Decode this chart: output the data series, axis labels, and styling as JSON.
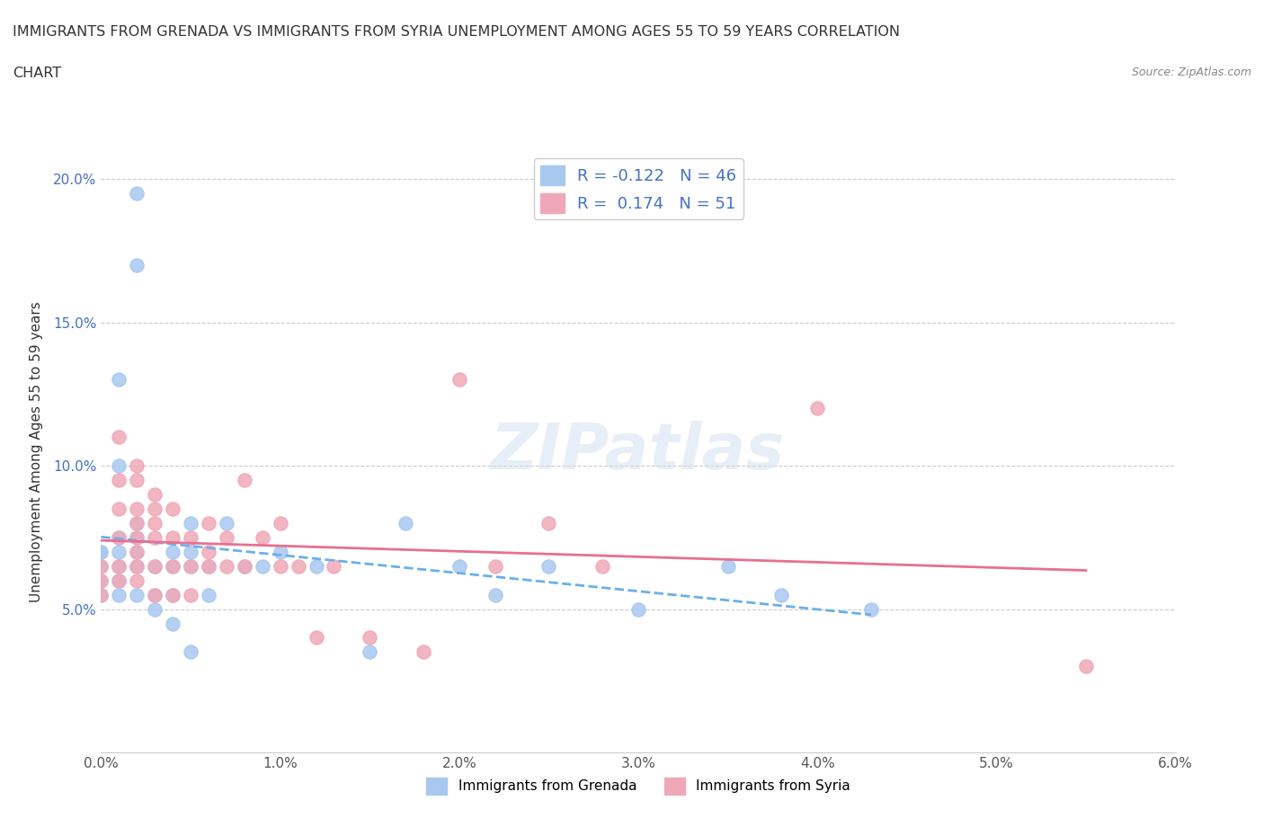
{
  "title_line1": "IMMIGRANTS FROM GRENADA VS IMMIGRANTS FROM SYRIA UNEMPLOYMENT AMONG AGES 55 TO 59 YEARS CORRELATION",
  "title_line2": "CHART",
  "source": "Source: ZipAtlas.com",
  "xlabel": "",
  "ylabel": "Unemployment Among Ages 55 to 59 years",
  "xlim": [
    0.0,
    0.06
  ],
  "ylim": [
    0.0,
    0.21
  ],
  "xticks": [
    0.0,
    0.01,
    0.02,
    0.03,
    0.04,
    0.05,
    0.06
  ],
  "xticklabels": [
    "0.0%",
    "1.0%",
    "2.0%",
    "3.0%",
    "4.0%",
    "5.0%",
    "6.0%"
  ],
  "yticks": [
    0.0,
    0.05,
    0.1,
    0.15,
    0.2
  ],
  "yticklabels": [
    "",
    "5.0%",
    "10.0%",
    "15.0%",
    "20.0%"
  ],
  "grenada_color": "#a8c8f0",
  "syria_color": "#f0a8b8",
  "grenada_R": -0.122,
  "grenada_N": 46,
  "syria_R": 0.174,
  "syria_N": 51,
  "watermark": "ZIPatlas",
  "grenada_scatter": [
    [
      0.0,
      0.07
    ],
    [
      0.0,
      0.065
    ],
    [
      0.0,
      0.07
    ],
    [
      0.0,
      0.06
    ],
    [
      0.0,
      0.055
    ],
    [
      0.001,
      0.13
    ],
    [
      0.001,
      0.1
    ],
    [
      0.001,
      0.075
    ],
    [
      0.001,
      0.07
    ],
    [
      0.001,
      0.065
    ],
    [
      0.001,
      0.06
    ],
    [
      0.001,
      0.055
    ],
    [
      0.002,
      0.195
    ],
    [
      0.002,
      0.17
    ],
    [
      0.002,
      0.08
    ],
    [
      0.002,
      0.075
    ],
    [
      0.002,
      0.07
    ],
    [
      0.002,
      0.065
    ],
    [
      0.002,
      0.055
    ],
    [
      0.003,
      0.065
    ],
    [
      0.003,
      0.055
    ],
    [
      0.003,
      0.05
    ],
    [
      0.004,
      0.07
    ],
    [
      0.004,
      0.065
    ],
    [
      0.004,
      0.055
    ],
    [
      0.004,
      0.045
    ],
    [
      0.005,
      0.08
    ],
    [
      0.005,
      0.07
    ],
    [
      0.005,
      0.065
    ],
    [
      0.005,
      0.035
    ],
    [
      0.006,
      0.065
    ],
    [
      0.006,
      0.055
    ],
    [
      0.007,
      0.08
    ],
    [
      0.008,
      0.065
    ],
    [
      0.009,
      0.065
    ],
    [
      0.01,
      0.07
    ],
    [
      0.012,
      0.065
    ],
    [
      0.015,
      0.035
    ],
    [
      0.017,
      0.08
    ],
    [
      0.02,
      0.065
    ],
    [
      0.022,
      0.055
    ],
    [
      0.025,
      0.065
    ],
    [
      0.03,
      0.05
    ],
    [
      0.035,
      0.065
    ],
    [
      0.038,
      0.055
    ],
    [
      0.043,
      0.05
    ]
  ],
  "syria_scatter": [
    [
      0.0,
      0.065
    ],
    [
      0.0,
      0.06
    ],
    [
      0.0,
      0.055
    ],
    [
      0.001,
      0.11
    ],
    [
      0.001,
      0.095
    ],
    [
      0.001,
      0.085
    ],
    [
      0.001,
      0.075
    ],
    [
      0.001,
      0.065
    ],
    [
      0.001,
      0.06
    ],
    [
      0.002,
      0.1
    ],
    [
      0.002,
      0.095
    ],
    [
      0.002,
      0.085
    ],
    [
      0.002,
      0.08
    ],
    [
      0.002,
      0.075
    ],
    [
      0.002,
      0.07
    ],
    [
      0.002,
      0.065
    ],
    [
      0.002,
      0.06
    ],
    [
      0.003,
      0.09
    ],
    [
      0.003,
      0.085
    ],
    [
      0.003,
      0.08
    ],
    [
      0.003,
      0.075
    ],
    [
      0.003,
      0.065
    ],
    [
      0.003,
      0.055
    ],
    [
      0.004,
      0.085
    ],
    [
      0.004,
      0.075
    ],
    [
      0.004,
      0.065
    ],
    [
      0.004,
      0.055
    ],
    [
      0.005,
      0.075
    ],
    [
      0.005,
      0.065
    ],
    [
      0.005,
      0.055
    ],
    [
      0.006,
      0.08
    ],
    [
      0.006,
      0.07
    ],
    [
      0.006,
      0.065
    ],
    [
      0.007,
      0.075
    ],
    [
      0.007,
      0.065
    ],
    [
      0.008,
      0.095
    ],
    [
      0.008,
      0.065
    ],
    [
      0.009,
      0.075
    ],
    [
      0.01,
      0.08
    ],
    [
      0.01,
      0.065
    ],
    [
      0.011,
      0.065
    ],
    [
      0.012,
      0.04
    ],
    [
      0.013,
      0.065
    ],
    [
      0.015,
      0.04
    ],
    [
      0.018,
      0.035
    ],
    [
      0.02,
      0.13
    ],
    [
      0.022,
      0.065
    ],
    [
      0.025,
      0.08
    ],
    [
      0.028,
      0.065
    ],
    [
      0.04,
      0.12
    ],
    [
      0.055,
      0.03
    ]
  ]
}
